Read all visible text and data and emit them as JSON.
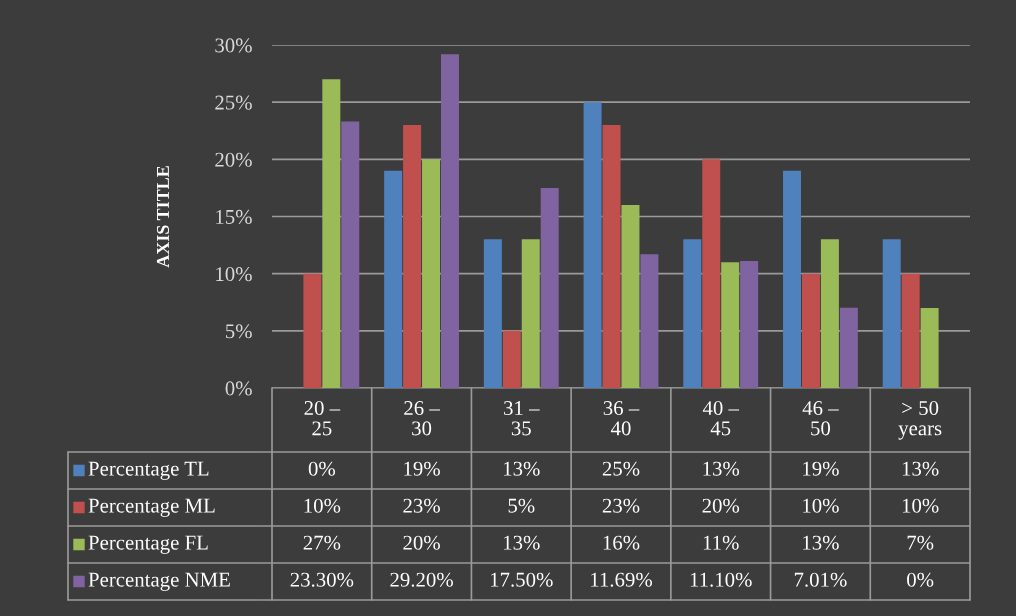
{
  "chart_data": {
    "type": "bar",
    "ylabel": "AXIS TITLE",
    "categories": [
      "20 –\n25",
      "26 –\n30",
      "31 –\n35",
      "36 –\n40",
      "40 –\n45",
      "46 –\n50",
      "> 50\nyears"
    ],
    "series": [
      {
        "name": "Percentage TL",
        "color": "#4f81bd",
        "values": [
          0,
          19,
          13,
          25,
          13,
          19,
          13
        ],
        "value_labels": [
          "0%",
          "19%",
          "13%",
          "25%",
          "13%",
          "19%",
          "13%"
        ]
      },
      {
        "name": "Percentage ML",
        "color": "#c0504d",
        "values": [
          10,
          23,
          5,
          23,
          20,
          10,
          10
        ],
        "value_labels": [
          "10%",
          "23%",
          "5%",
          "23%",
          "20%",
          "10%",
          "10%"
        ]
      },
      {
        "name": "Percentage FL",
        "color": "#9bbb59",
        "values": [
          27,
          20,
          13,
          16,
          11,
          13,
          7
        ],
        "value_labels": [
          "27%",
          "20%",
          "13%",
          "16%",
          "11%",
          "13%",
          "7%"
        ]
      },
      {
        "name": "Percentage NME",
        "color": "#8064a2",
        "values": [
          23.3,
          29.2,
          17.5,
          11.69,
          11.1,
          7.01,
          0
        ],
        "value_labels": [
          "23.30%",
          "29.20%",
          "17.50%",
          "11.69%",
          "11.10%",
          "7.01%",
          "0%"
        ]
      }
    ],
    "ylim": [
      0,
      30
    ],
    "yticks": [
      {
        "value": 0,
        "label": "0%"
      },
      {
        "value": 5,
        "label": "5%"
      },
      {
        "value": 10,
        "label": "10%"
      },
      {
        "value": 15,
        "label": "15%"
      },
      {
        "value": 20,
        "label": "20%"
      },
      {
        "value": 25,
        "label": "25%"
      },
      {
        "value": 30,
        "label": "30%"
      }
    ],
    "grid": "y",
    "legend": "bottom left"
  }
}
